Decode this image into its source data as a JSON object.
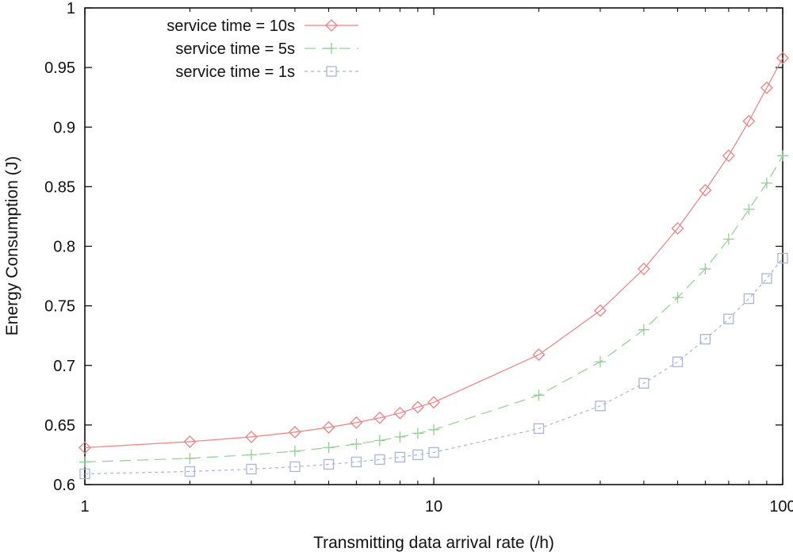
{
  "chart_data": {
    "type": "line",
    "xscale": "log",
    "xlabel": "Transmitting data arrival rate (/h)",
    "ylabel": "Energy Consumption (J)",
    "xlim": [
      1,
      100
    ],
    "ylim": [
      0.6,
      1.0
    ],
    "xticks": [
      1,
      10,
      100
    ],
    "xtick_labels": [
      "1",
      "10",
      "100"
    ],
    "yticks": [
      0.6,
      0.65,
      0.7,
      0.75,
      0.8,
      0.85,
      0.9,
      0.95,
      1.0
    ],
    "ytick_labels": [
      "0.6",
      "0.65",
      "0.7",
      "0.75",
      "0.8",
      "0.85",
      "0.9",
      "0.95",
      "1"
    ],
    "grid": false,
    "legend_position": "top-left",
    "x": [
      1,
      2,
      3,
      4,
      5,
      6,
      7,
      8,
      9,
      10,
      20,
      30,
      40,
      50,
      60,
      70,
      80,
      90,
      100
    ],
    "series": [
      {
        "name": "service time = 10s",
        "marker": "diamond",
        "color": "#f08080",
        "dash": "",
        "values": [
          0.631,
          0.636,
          0.64,
          0.644,
          0.648,
          0.652,
          0.656,
          0.66,
          0.665,
          0.669,
          0.709,
          0.746,
          0.781,
          0.815,
          0.847,
          0.876,
          0.905,
          0.933,
          0.958
        ]
      },
      {
        "name": "service time = 5s",
        "marker": "plus",
        "color": "#90d090",
        "dash": "14,8",
        "values": [
          0.619,
          0.622,
          0.625,
          0.628,
          0.631,
          0.634,
          0.637,
          0.64,
          0.643,
          0.646,
          0.675,
          0.703,
          0.73,
          0.757,
          0.781,
          0.806,
          0.831,
          0.853,
          0.876
        ]
      },
      {
        "name": "service time = 1s",
        "marker": "square",
        "color": "#a8b4dc",
        "dash": "4,4",
        "values": [
          0.609,
          0.611,
          0.613,
          0.615,
          0.617,
          0.619,
          0.621,
          0.623,
          0.625,
          0.627,
          0.647,
          0.666,
          0.685,
          0.703,
          0.722,
          0.739,
          0.756,
          0.773,
          0.79
        ]
      }
    ]
  }
}
